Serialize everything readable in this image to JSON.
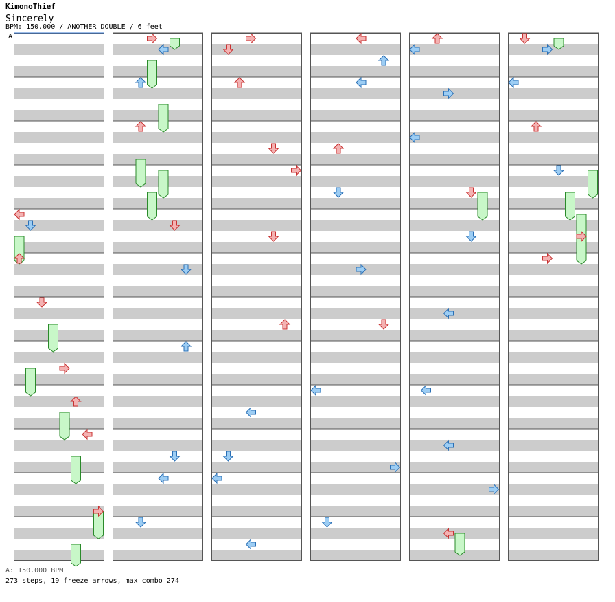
{
  "header": {
    "author": "KimonoThief",
    "song_title": "Sincerely",
    "meta_line": "BPM: 150.000 / ANOTHER DOUBLE / 6 feet",
    "marker": "A"
  },
  "footer": {
    "bpm_note": "A: 150.000 BPM",
    "stats": "273 steps, 19 freeze arrows, max combo 274"
  },
  "chart": {
    "columns": 6,
    "measures_per_column": 12,
    "lanes": 8,
    "colors": {
      "stripe": "#cccccc",
      "border": "#555555",
      "red_fill": "#f4b2b2",
      "red_stroke": "#c83232",
      "blue_fill": "#9ccdf4",
      "blue_stroke": "#2a6fb5",
      "hold_fill": "#c8f7c8",
      "hold_stroke": "#2a8a2a"
    },
    "sample_notes": [
      {
        "col": 0,
        "measure": 4,
        "beat": 0,
        "lane": 0,
        "color": "red",
        "dir": "left"
      },
      {
        "col": 0,
        "measure": 4,
        "beat": 1,
        "lane": 1,
        "color": "blue",
        "dir": "down"
      },
      {
        "col": 0,
        "measure": 5,
        "beat": 0,
        "lane": 0,
        "color": "red",
        "dir": "up"
      },
      {
        "col": 0,
        "measure": 6,
        "beat": 0,
        "lane": 2,
        "color": "red",
        "dir": "down"
      },
      {
        "col": 0,
        "measure": 7,
        "beat": 2,
        "lane": 4,
        "color": "red",
        "dir": "right"
      },
      {
        "col": 0,
        "measure": 8,
        "beat": 1,
        "lane": 5,
        "color": "red",
        "dir": "up"
      },
      {
        "col": 0,
        "measure": 9,
        "beat": 0,
        "lane": 6,
        "color": "red",
        "dir": "left"
      },
      {
        "col": 0,
        "measure": 10,
        "beat": 3,
        "lane": 7,
        "color": "red",
        "dir": "right"
      },
      {
        "col": 1,
        "measure": 0,
        "beat": 0,
        "lane": 3,
        "color": "red",
        "dir": "right"
      },
      {
        "col": 1,
        "measure": 0,
        "beat": 1,
        "lane": 4,
        "color": "blue",
        "dir": "left"
      },
      {
        "col": 1,
        "measure": 1,
        "beat": 0,
        "lane": 2,
        "color": "blue",
        "dir": "up"
      },
      {
        "col": 1,
        "measure": 2,
        "beat": 0,
        "lane": 2,
        "color": "red",
        "dir": "up"
      },
      {
        "col": 1,
        "measure": 4,
        "beat": 1,
        "lane": 5,
        "color": "red",
        "dir": "down"
      },
      {
        "col": 1,
        "measure": 5,
        "beat": 1,
        "lane": 6,
        "color": "blue",
        "dir": "down"
      },
      {
        "col": 1,
        "measure": 7,
        "beat": 0,
        "lane": 6,
        "color": "blue",
        "dir": "up"
      },
      {
        "col": 1,
        "measure": 9,
        "beat": 2,
        "lane": 5,
        "color": "blue",
        "dir": "down"
      },
      {
        "col": 1,
        "measure": 10,
        "beat": 0,
        "lane": 4,
        "color": "blue",
        "dir": "left"
      },
      {
        "col": 1,
        "measure": 11,
        "beat": 0,
        "lane": 2,
        "color": "blue",
        "dir": "down"
      },
      {
        "col": 2,
        "measure": 0,
        "beat": 0,
        "lane": 3,
        "color": "red",
        "dir": "right"
      },
      {
        "col": 2,
        "measure": 0,
        "beat": 1,
        "lane": 1,
        "color": "red",
        "dir": "down"
      },
      {
        "col": 2,
        "measure": 1,
        "beat": 0,
        "lane": 2,
        "color": "red",
        "dir": "up"
      },
      {
        "col": 2,
        "measure": 2,
        "beat": 2,
        "lane": 5,
        "color": "red",
        "dir": "down"
      },
      {
        "col": 2,
        "measure": 3,
        "beat": 0,
        "lane": 7,
        "color": "red",
        "dir": "right"
      },
      {
        "col": 2,
        "measure": 4,
        "beat": 2,
        "lane": 5,
        "color": "red",
        "dir": "down"
      },
      {
        "col": 2,
        "measure": 6,
        "beat": 2,
        "lane": 6,
        "color": "red",
        "dir": "up"
      },
      {
        "col": 2,
        "measure": 8,
        "beat": 2,
        "lane": 3,
        "color": "blue",
        "dir": "left"
      },
      {
        "col": 2,
        "measure": 9,
        "beat": 2,
        "lane": 1,
        "color": "blue",
        "dir": "down"
      },
      {
        "col": 2,
        "measure": 10,
        "beat": 0,
        "lane": 0,
        "color": "blue",
        "dir": "left"
      },
      {
        "col": 2,
        "measure": 11,
        "beat": 2,
        "lane": 3,
        "color": "blue",
        "dir": "left"
      },
      {
        "col": 3,
        "measure": 0,
        "beat": 0,
        "lane": 4,
        "color": "red",
        "dir": "left"
      },
      {
        "col": 3,
        "measure": 0,
        "beat": 2,
        "lane": 6,
        "color": "blue",
        "dir": "up"
      },
      {
        "col": 3,
        "measure": 1,
        "beat": 0,
        "lane": 4,
        "color": "blue",
        "dir": "left"
      },
      {
        "col": 3,
        "measure": 2,
        "beat": 2,
        "lane": 2,
        "color": "red",
        "dir": "up"
      },
      {
        "col": 3,
        "measure": 3,
        "beat": 2,
        "lane": 2,
        "color": "blue",
        "dir": "down"
      },
      {
        "col": 3,
        "measure": 5,
        "beat": 1,
        "lane": 4,
        "color": "blue",
        "dir": "right"
      },
      {
        "col": 3,
        "measure": 6,
        "beat": 2,
        "lane": 6,
        "color": "red",
        "dir": "down"
      },
      {
        "col": 3,
        "measure": 8,
        "beat": 0,
        "lane": 0,
        "color": "blue",
        "dir": "left"
      },
      {
        "col": 3,
        "measure": 9,
        "beat": 3,
        "lane": 7,
        "color": "blue",
        "dir": "right"
      },
      {
        "col": 3,
        "measure": 11,
        "beat": 0,
        "lane": 1,
        "color": "blue",
        "dir": "down"
      },
      {
        "col": 4,
        "measure": 0,
        "beat": 0,
        "lane": 2,
        "color": "red",
        "dir": "up"
      },
      {
        "col": 4,
        "measure": 0,
        "beat": 1,
        "lane": 0,
        "color": "blue",
        "dir": "left"
      },
      {
        "col": 4,
        "measure": 1,
        "beat": 1,
        "lane": 3,
        "color": "blue",
        "dir": "right"
      },
      {
        "col": 4,
        "measure": 2,
        "beat": 1,
        "lane": 0,
        "color": "blue",
        "dir": "left"
      },
      {
        "col": 4,
        "measure": 3,
        "beat": 2,
        "lane": 5,
        "color": "red",
        "dir": "down"
      },
      {
        "col": 4,
        "measure": 4,
        "beat": 2,
        "lane": 5,
        "color": "blue",
        "dir": "down"
      },
      {
        "col": 4,
        "measure": 6,
        "beat": 1,
        "lane": 3,
        "color": "blue",
        "dir": "left"
      },
      {
        "col": 4,
        "measure": 8,
        "beat": 0,
        "lane": 1,
        "color": "blue",
        "dir": "left"
      },
      {
        "col": 4,
        "measure": 9,
        "beat": 1,
        "lane": 3,
        "color": "blue",
        "dir": "left"
      },
      {
        "col": 4,
        "measure": 10,
        "beat": 1,
        "lane": 7,
        "color": "blue",
        "dir": "right"
      },
      {
        "col": 4,
        "measure": 11,
        "beat": 1,
        "lane": 3,
        "color": "red",
        "dir": "left"
      },
      {
        "col": 5,
        "measure": 0,
        "beat": 0,
        "lane": 1,
        "color": "red",
        "dir": "down"
      },
      {
        "col": 5,
        "measure": 0,
        "beat": 1,
        "lane": 3,
        "color": "blue",
        "dir": "right"
      },
      {
        "col": 5,
        "measure": 1,
        "beat": 0,
        "lane": 0,
        "color": "blue",
        "dir": "left"
      },
      {
        "col": 5,
        "measure": 2,
        "beat": 0,
        "lane": 2,
        "color": "red",
        "dir": "up"
      },
      {
        "col": 5,
        "measure": 3,
        "beat": 0,
        "lane": 4,
        "color": "blue",
        "dir": "down"
      },
      {
        "col": 5,
        "measure": 4,
        "beat": 2,
        "lane": 6,
        "color": "red",
        "dir": "right"
      },
      {
        "col": 5,
        "measure": 5,
        "beat": 0,
        "lane": 3,
        "color": "red",
        "dir": "right"
      }
    ],
    "sample_holds": [
      {
        "col": 0,
        "measure": 4,
        "beat": 2,
        "length_beats": 2.5,
        "lane": 0
      },
      {
        "col": 0,
        "measure": 6,
        "beat": 2,
        "length_beats": 2.5,
        "lane": 3
      },
      {
        "col": 0,
        "measure": 7,
        "beat": 2,
        "length_beats": 2.5,
        "lane": 1
      },
      {
        "col": 0,
        "measure": 8,
        "beat": 2,
        "length_beats": 2.5,
        "lane": 4
      },
      {
        "col": 0,
        "measure": 9,
        "beat": 2,
        "length_beats": 2.5,
        "lane": 5
      },
      {
        "col": 0,
        "measure": 10,
        "beat": 3,
        "length_beats": 2.5,
        "lane": 7
      },
      {
        "col": 1,
        "measure": 0,
        "beat": 0,
        "length_beats": 1,
        "lane": 5
      },
      {
        "col": 1,
        "measure": 0,
        "beat": 2,
        "length_beats": 2.5,
        "lane": 3
      },
      {
        "col": 1,
        "measure": 1,
        "beat": 2,
        "length_beats": 2.5,
        "lane": 4
      },
      {
        "col": 1,
        "measure": 2,
        "beat": 3,
        "length_beats": 2.5,
        "lane": 2
      },
      {
        "col": 1,
        "measure": 3,
        "beat": 0,
        "length_beats": 2.5,
        "lane": 4
      },
      {
        "col": 1,
        "measure": 3,
        "beat": 2,
        "length_beats": 2.5,
        "lane": 3
      },
      {
        "col": 4,
        "measure": 3,
        "beat": 2,
        "length_beats": 2.5,
        "lane": 6
      },
      {
        "col": 5,
        "measure": 3,
        "beat": 0,
        "length_beats": 2.5,
        "lane": 7
      },
      {
        "col": 5,
        "measure": 3,
        "beat": 2,
        "length_beats": 2.5,
        "lane": 5
      },
      {
        "col": 5,
        "measure": 4,
        "beat": 0,
        "length_beats": 4.5,
        "lane": 6
      },
      {
        "col": 5,
        "measure": 0,
        "beat": 0,
        "length_beats": 1,
        "lane": 4
      },
      {
        "col": 4,
        "measure": 11,
        "beat": 1,
        "length_beats": 2,
        "lane": 4
      },
      {
        "col": 0,
        "measure": 11,
        "beat": 2,
        "length_beats": 2,
        "lane": 5
      }
    ]
  }
}
